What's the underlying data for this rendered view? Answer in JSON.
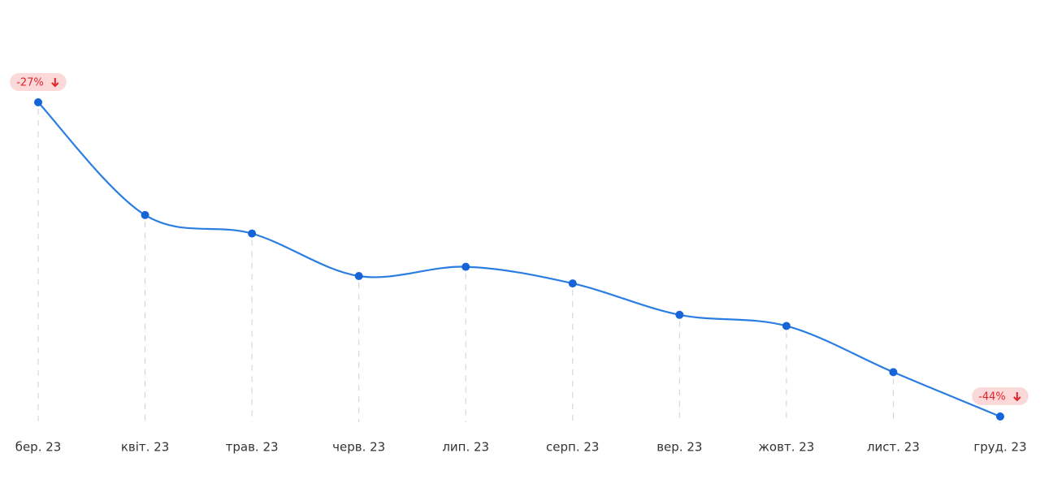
{
  "chart_data": {
    "type": "line",
    "categories": [
      "бер. 23",
      "квіт. 23",
      "трав. 23",
      "черв. 23",
      "лип. 23",
      "серп. 23",
      "вер. 23",
      "жовт. 23",
      "лист. 23",
      "груд. 23"
    ],
    "series": [
      {
        "color": "#2a7de1",
        "values": [
          -27,
          -33.1,
          -34.1,
          -36.4,
          -35.9,
          -36.8,
          -38.5,
          -39.1,
          -41.6,
          -44
        ],
        "value_labels": [
          "-27%",
          null,
          null,
          null,
          null,
          null,
          null,
          null,
          null,
          "-44%"
        ]
      }
    ]
  }
}
